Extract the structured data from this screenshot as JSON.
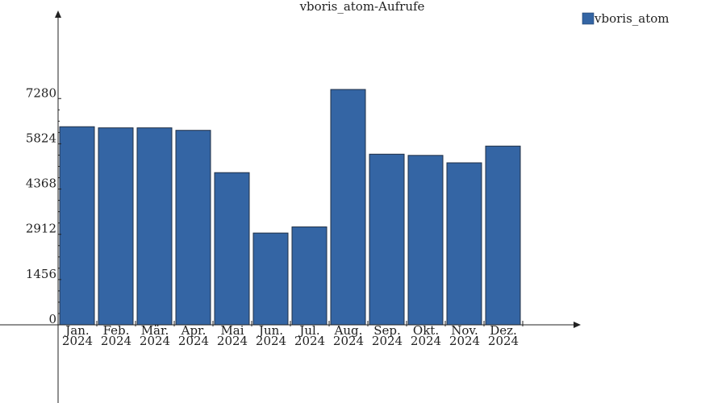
{
  "chart_data": {
    "type": "bar",
    "title": "vboris_atom-Aufrufe",
    "xlabel": "",
    "ylabel": "",
    "categories": [
      [
        "Jan.",
        "2024"
      ],
      [
        "Feb.",
        "2024"
      ],
      [
        "Mär.",
        "2024"
      ],
      [
        "Apr.",
        "2024"
      ],
      [
        "Mai",
        "2024"
      ],
      [
        "Jun.",
        "2024"
      ],
      [
        "Jul.",
        "2024"
      ],
      [
        "Aug.",
        "2024"
      ],
      [
        "Sep.",
        "2024"
      ],
      [
        "Okt.",
        "2024"
      ],
      [
        "Nov.",
        "2024"
      ],
      [
        "Dez.",
        "2024"
      ]
    ],
    "series": [
      {
        "name": "vboris_atom",
        "color": "#3465a4",
        "values": [
          6373,
          6337,
          6337,
          6257,
          4896,
          2953,
          3150,
          7572,
          5490,
          5451,
          5212,
          5750
        ]
      }
    ],
    "yticks": [
      "0",
      "1456",
      "2912",
      "4368",
      "5824",
      "7280"
    ],
    "ylim": [
      0,
      7280
    ],
    "grid": false,
    "legend_position": "top-right"
  }
}
